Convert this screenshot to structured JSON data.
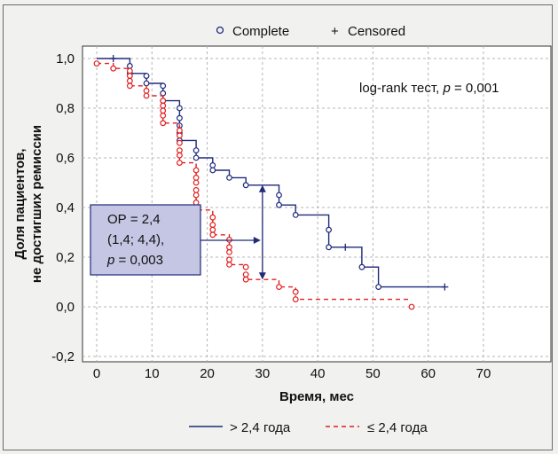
{
  "chart_data": {
    "type": "line",
    "title": "",
    "xlabel": "Время, мес",
    "ylabel_lines": [
      "Доля пациентов,",
      "не достигших ремиссии"
    ],
    "xlim": [
      -1,
      70
    ],
    "ylim": [
      -0.2,
      1.05
    ],
    "xticks": [
      0,
      10,
      20,
      30,
      40,
      50,
      60,
      70
    ],
    "yticks": [
      -0.2,
      0.0,
      0.2,
      0.4,
      0.6,
      0.8,
      1.0
    ],
    "ytick_labels": [
      "-0,2",
      "0,0",
      "0,2",
      "0,4",
      "0,6",
      "0,8",
      "1,0"
    ],
    "grid": true,
    "marker_legend": {
      "complete": "Complete",
      "censored": "Censored"
    },
    "annotation": {
      "prefix": "log-rank тест, ",
      "p": "p",
      "suffix": " = 0,001"
    },
    "or_box": {
      "line1": "ОР = 2,4",
      "line2": "(1,4; 4,4),",
      "line3_p": "p",
      "line3_rest": " = 0,003"
    },
    "or_arrow": {
      "x": 30,
      "y_top": 0.49,
      "y_bottom": 0.11
    },
    "line_legend": {
      "gt": "> 2,4 года",
      "le": "≤ 2,4 года"
    },
    "series": [
      {
        "name": "> 2,4 года",
        "color": "#1f2a7a",
        "dash": false,
        "steps": [
          [
            0,
            1.0
          ],
          [
            6,
            1.0
          ],
          [
            6,
            0.94
          ],
          [
            9,
            0.94
          ],
          [
            9,
            0.9
          ],
          [
            12,
            0.9
          ],
          [
            12,
            0.83
          ],
          [
            15,
            0.83
          ],
          [
            15,
            0.67
          ],
          [
            18,
            0.67
          ],
          [
            18,
            0.6
          ],
          [
            21,
            0.6
          ],
          [
            21,
            0.55
          ],
          [
            24,
            0.55
          ],
          [
            24,
            0.52
          ],
          [
            27,
            0.52
          ],
          [
            27,
            0.49
          ],
          [
            33,
            0.49
          ],
          [
            33,
            0.41
          ],
          [
            36,
            0.41
          ],
          [
            36,
            0.37
          ],
          [
            42,
            0.37
          ],
          [
            42,
            0.24
          ],
          [
            48,
            0.24
          ],
          [
            48,
            0.16
          ],
          [
            51,
            0.16
          ],
          [
            51,
            0.08
          ],
          [
            63,
            0.08
          ]
        ],
        "complete": [
          [
            6,
            0.97
          ],
          [
            6,
            0.94
          ],
          [
            9,
            0.93
          ],
          [
            9,
            0.9
          ],
          [
            12,
            0.89
          ],
          [
            12,
            0.86
          ],
          [
            12,
            0.83
          ],
          [
            15,
            0.8
          ],
          [
            15,
            0.76
          ],
          [
            15,
            0.73
          ],
          [
            15,
            0.7
          ],
          [
            15,
            0.67
          ],
          [
            18,
            0.63
          ],
          [
            18,
            0.6
          ],
          [
            21,
            0.57
          ],
          [
            21,
            0.55
          ],
          [
            24,
            0.52
          ],
          [
            27,
            0.49
          ],
          [
            33,
            0.45
          ],
          [
            33,
            0.41
          ],
          [
            36,
            0.37
          ],
          [
            42,
            0.31
          ],
          [
            42,
            0.24
          ],
          [
            48,
            0.16
          ],
          [
            51,
            0.08
          ]
        ],
        "censored": [
          [
            3,
            1.0
          ],
          [
            45,
            0.24
          ],
          [
            63,
            0.08
          ]
        ]
      },
      {
        "name": "≤ 2,4 года",
        "color": "#e02020",
        "dash": true,
        "steps": [
          [
            0,
            0.98
          ],
          [
            3,
            0.98
          ],
          [
            3,
            0.96
          ],
          [
            6,
            0.96
          ],
          [
            6,
            0.89
          ],
          [
            9,
            0.89
          ],
          [
            9,
            0.85
          ],
          [
            12,
            0.85
          ],
          [
            12,
            0.74
          ],
          [
            15,
            0.74
          ],
          [
            15,
            0.58
          ],
          [
            18,
            0.58
          ],
          [
            18,
            0.39
          ],
          [
            21,
            0.39
          ],
          [
            21,
            0.29
          ],
          [
            24,
            0.29
          ],
          [
            24,
            0.17
          ],
          [
            27,
            0.17
          ],
          [
            27,
            0.11
          ],
          [
            33,
            0.11
          ],
          [
            33,
            0.08
          ],
          [
            36,
            0.08
          ],
          [
            36,
            0.03
          ],
          [
            57,
            0.03
          ]
        ],
        "complete": [
          [
            0,
            0.98
          ],
          [
            3,
            0.96
          ],
          [
            6,
            0.95
          ],
          [
            6,
            0.93
          ],
          [
            6,
            0.91
          ],
          [
            6,
            0.89
          ],
          [
            9,
            0.87
          ],
          [
            9,
            0.85
          ],
          [
            12,
            0.83
          ],
          [
            12,
            0.81
          ],
          [
            12,
            0.79
          ],
          [
            12,
            0.77
          ],
          [
            12,
            0.74
          ],
          [
            15,
            0.71
          ],
          [
            15,
            0.69
          ],
          [
            15,
            0.66
          ],
          [
            15,
            0.63
          ],
          [
            15,
            0.61
          ],
          [
            15,
            0.58
          ],
          [
            18,
            0.55
          ],
          [
            18,
            0.52
          ],
          [
            18,
            0.5
          ],
          [
            18,
            0.47
          ],
          [
            18,
            0.45
          ],
          [
            18,
            0.42
          ],
          [
            18,
            0.39
          ],
          [
            21,
            0.36
          ],
          [
            21,
            0.33
          ],
          [
            21,
            0.31
          ],
          [
            21,
            0.29
          ],
          [
            24,
            0.27
          ],
          [
            24,
            0.24
          ],
          [
            24,
            0.22
          ],
          [
            24,
            0.19
          ],
          [
            24,
            0.17
          ],
          [
            27,
            0.16
          ],
          [
            27,
            0.13
          ],
          [
            27,
            0.11
          ],
          [
            33,
            0.08
          ],
          [
            36,
            0.06
          ],
          [
            36,
            0.03
          ],
          [
            57,
            0.0
          ]
        ],
        "censored": []
      }
    ]
  }
}
